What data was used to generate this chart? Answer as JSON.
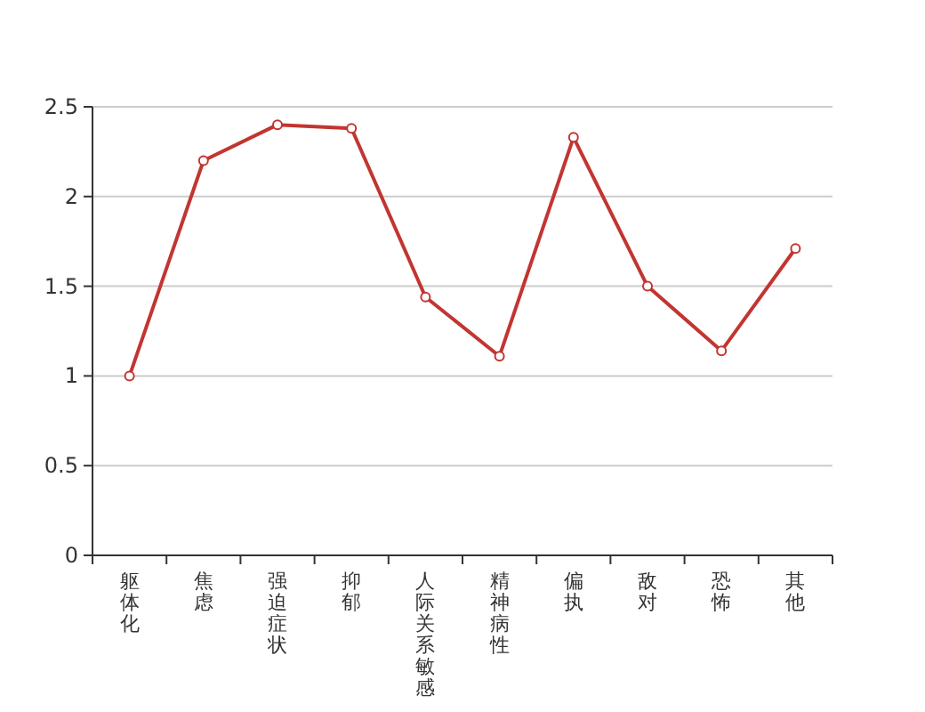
{
  "chart_data": {
    "type": "line",
    "categories": [
      "躯体化",
      "焦虑",
      "强迫症状",
      "抑郁",
      "人际关系敏感",
      "精神病性",
      "偏执",
      "敌对",
      "恐怖",
      "其他"
    ],
    "series": [
      {
        "color": "#c23531",
        "values": [
          1.0,
          2.2,
          2.4,
          2.38,
          1.44,
          1.11,
          2.33,
          1.5,
          1.14,
          1.71
        ]
      }
    ],
    "ylim": [
      0,
      2.5
    ],
    "yticks": [
      0,
      0.5,
      1,
      1.5,
      2,
      2.5
    ],
    "grid": "y",
    "marker": "circle"
  }
}
